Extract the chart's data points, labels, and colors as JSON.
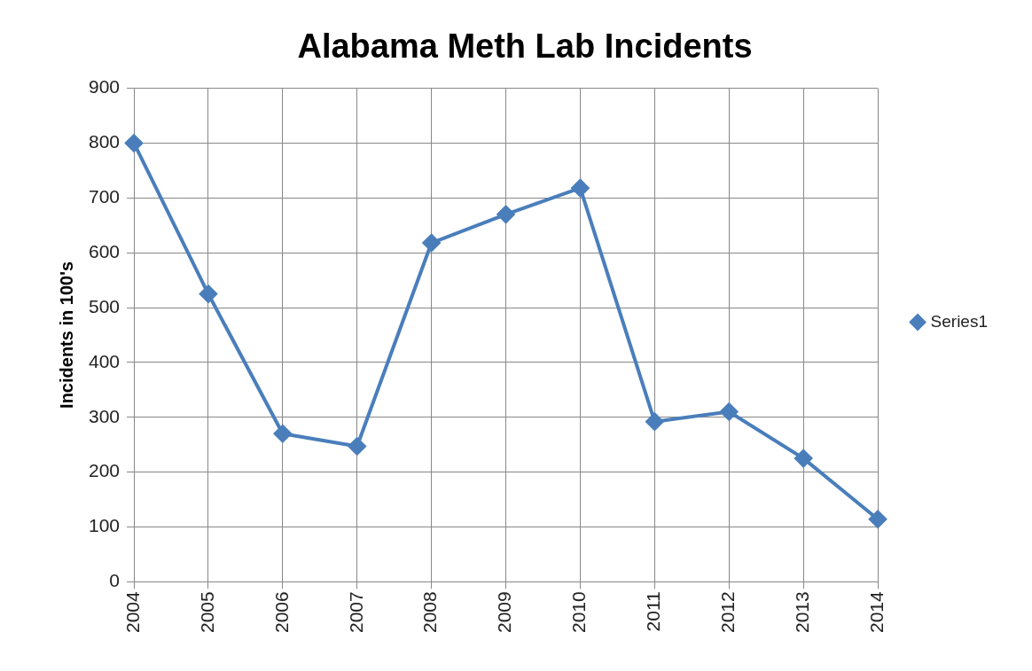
{
  "chart_data": {
    "type": "line",
    "title": "Alabama Meth Lab Incidents",
    "ylabel": "Incidents in 100's",
    "categories": [
      "2004",
      "2005",
      "2006",
      "2007",
      "2008",
      "2009",
      "2010",
      "2011",
      "2012",
      "2013",
      "2014"
    ],
    "series": [
      {
        "name": "Series1",
        "color": "#4a7ebb",
        "values": [
          800,
          525,
          270,
          247,
          618,
          670,
          718,
          292,
          310,
          225,
          114
        ]
      }
    ],
    "ylim": [
      0,
      900
    ],
    "yticks": [
      0,
      100,
      200,
      300,
      400,
      500,
      600,
      700,
      800,
      900
    ],
    "grid": true,
    "legend": "right",
    "marker": "diamond",
    "line_style": "solid"
  }
}
